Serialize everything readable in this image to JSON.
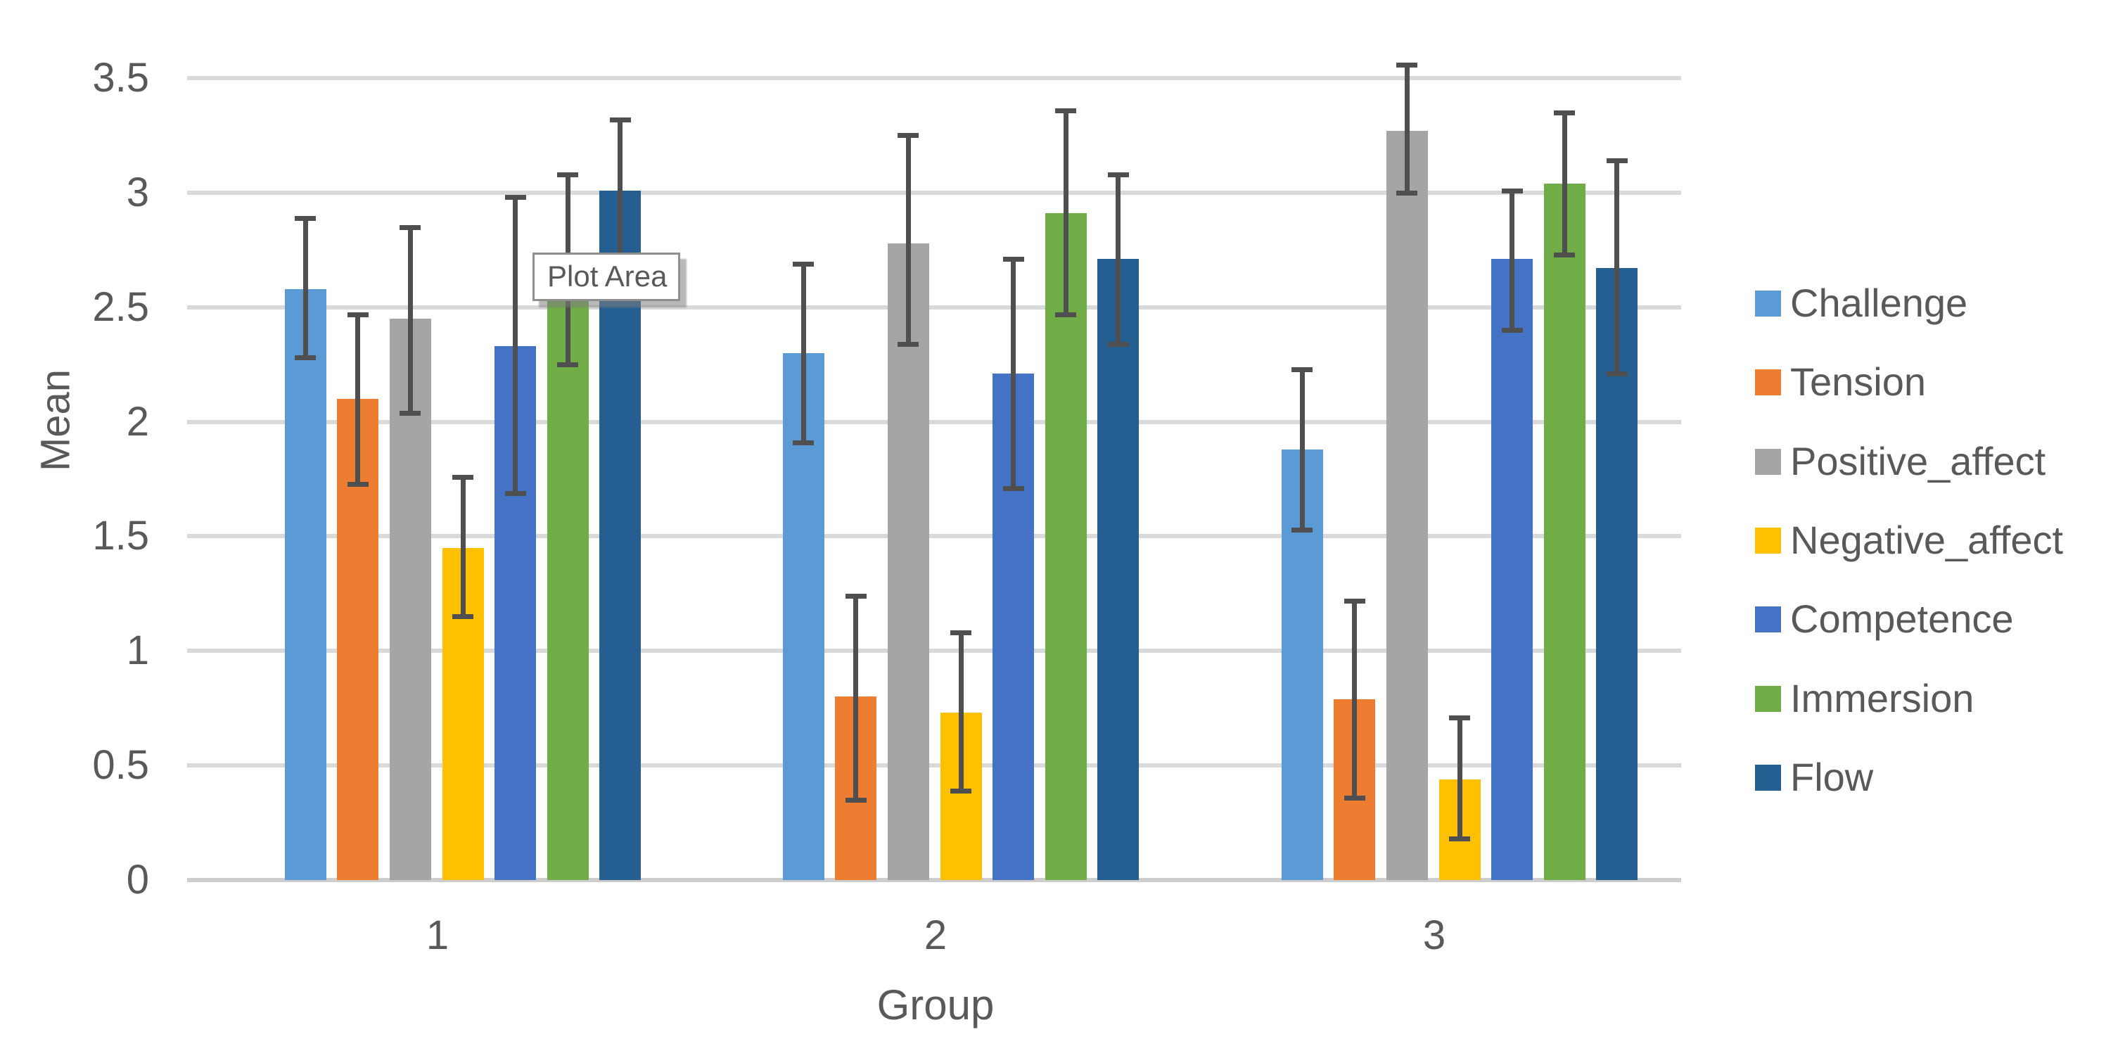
{
  "chart_data": {
    "type": "bar",
    "title": "",
    "xlabel": "Group",
    "ylabel": "Mean",
    "categories": [
      "1",
      "2",
      "3"
    ],
    "y_ticks": [
      "0",
      "0.5",
      "1",
      "1.5",
      "2",
      "2.5",
      "3",
      "3.5"
    ],
    "ylim": [
      0,
      3.5
    ],
    "grid": true,
    "legend_position": "right",
    "error_bars": true,
    "series": [
      {
        "name": "Challenge",
        "color": "#5B9BD5",
        "values": [
          2.58,
          2.3,
          1.88
        ],
        "err_low": [
          2.28,
          1.91,
          1.53
        ],
        "err_high": [
          2.89,
          2.69,
          2.23
        ]
      },
      {
        "name": "Tension",
        "color": "#ED7D31",
        "values": [
          2.1,
          0.8,
          0.79
        ],
        "err_low": [
          1.73,
          0.35,
          0.36
        ],
        "err_high": [
          2.47,
          1.24,
          1.22
        ]
      },
      {
        "name": "Positive_affect",
        "color": "#A5A5A5",
        "values": [
          2.45,
          2.78,
          3.27
        ],
        "err_low": [
          2.04,
          2.34,
          3.0
        ],
        "err_high": [
          2.85,
          3.25,
          3.56
        ]
      },
      {
        "name": "Negative_affect",
        "color": "#FFC000",
        "values": [
          1.45,
          0.73,
          0.44
        ],
        "err_low": [
          1.15,
          0.39,
          0.18
        ],
        "err_high": [
          1.76,
          1.08,
          0.71
        ]
      },
      {
        "name": "Competence",
        "color": "#4472C4",
        "values": [
          2.33,
          2.21,
          2.71
        ],
        "err_low": [
          1.69,
          1.71,
          2.4
        ],
        "err_high": [
          2.98,
          2.71,
          3.01
        ]
      },
      {
        "name": "Immersion",
        "color": "#70AD47",
        "values": [
          2.66,
          2.91,
          3.04
        ],
        "err_low": [
          2.25,
          2.47,
          2.73
        ],
        "err_high": [
          3.08,
          3.36,
          3.35
        ]
      },
      {
        "name": "Flow",
        "color": "#255E91",
        "values": [
          3.01,
          2.71,
          2.67
        ],
        "err_low": [
          2.7,
          2.34,
          2.21
        ],
        "err_high": [
          3.32,
          3.08,
          3.14
        ]
      }
    ],
    "style": {
      "gridline_color": "#D9D9D9",
      "axis_line_color": "#CDCDCD",
      "error_bar_color": "#4F4F4F",
      "label_color": "#595959"
    }
  },
  "tooltip": {
    "text": "Plot Area"
  }
}
